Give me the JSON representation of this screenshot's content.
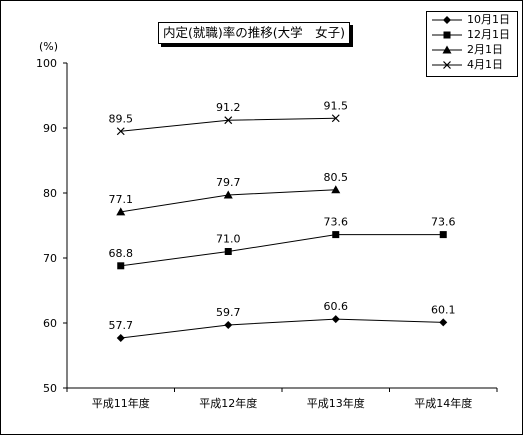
{
  "chart_data": {
    "type": "line",
    "title": "内定(就職)率の推移(大学　女子)",
    "y_unit": "(%)",
    "ylim": [
      50,
      100
    ],
    "yticks": [
      50,
      60,
      70,
      80,
      90,
      100
    ],
    "grid": false,
    "legend_position": "top-right",
    "categories": [
      "平成11年度",
      "平成12年度",
      "平成13年度",
      "平成14年度"
    ],
    "series": [
      {
        "name": "10月1日",
        "marker": "diamond",
        "values": [
          57.7,
          59.7,
          60.6,
          60.1
        ],
        "labels": [
          "57.7",
          "59.7",
          "60.6",
          "60.1"
        ]
      },
      {
        "name": "12月1日",
        "marker": "square",
        "values": [
          68.8,
          71.0,
          73.6,
          73.6
        ],
        "labels": [
          "68.8",
          "71.0",
          "73.6",
          "73.6"
        ]
      },
      {
        "name": "2月1日",
        "marker": "triangle",
        "values": [
          77.1,
          79.7,
          80.5,
          null
        ],
        "labels": [
          "77.1",
          "79.7",
          "80.5",
          ""
        ]
      },
      {
        "name": "4月1日",
        "marker": "cross",
        "values": [
          89.5,
          91.2,
          91.5,
          null
        ],
        "labels": [
          "89.5",
          "91.2",
          "91.5",
          ""
        ]
      }
    ],
    "colors": {
      "line": "#000000",
      "background": "#ffffff"
    }
  }
}
